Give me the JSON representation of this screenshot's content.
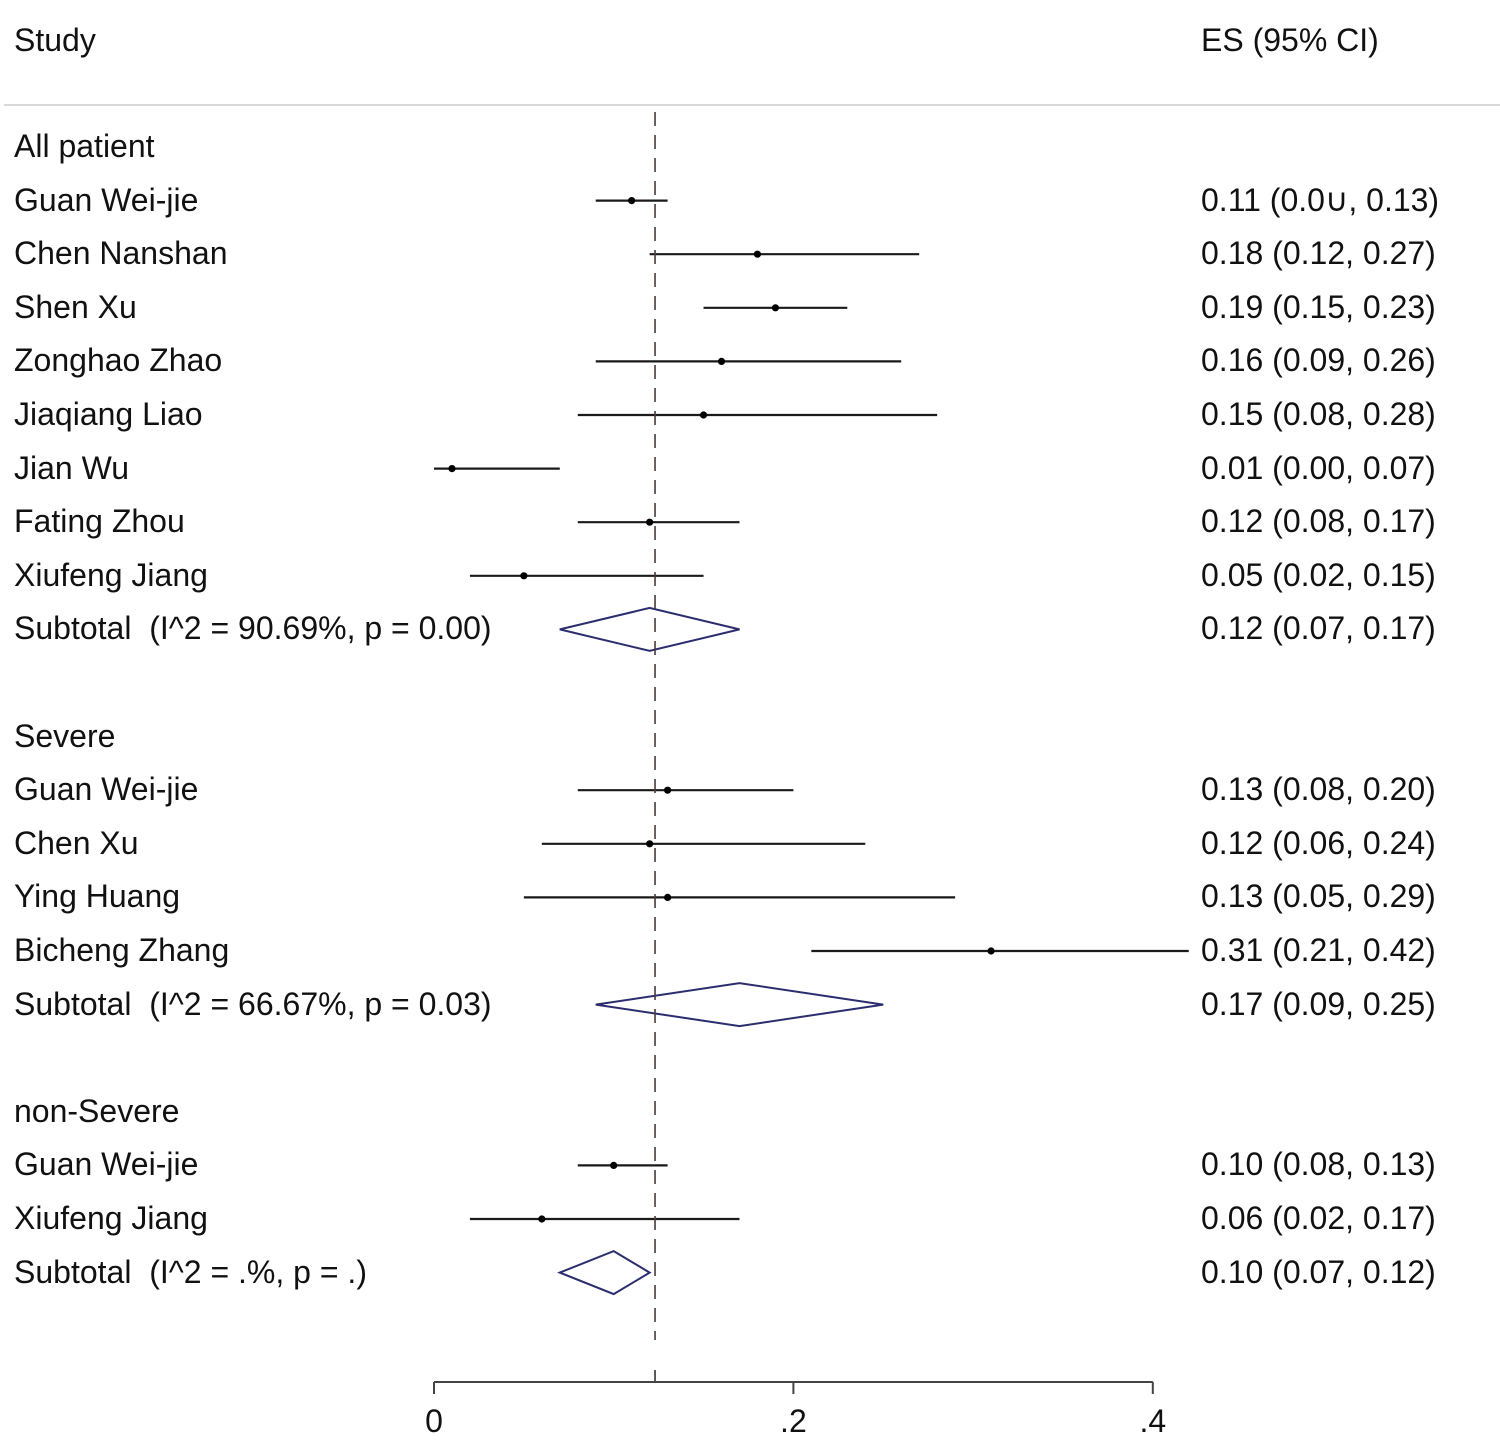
{
  "chart_data": {
    "type": "forest",
    "header": {
      "study_label": "Study",
      "es_label": "ES (95% CI)"
    },
    "xlim": [
      0,
      0.42
    ],
    "axis_ticks": [
      {
        "value": 0,
        "label": "0"
      },
      {
        "value": 0.2,
        "label": ".2"
      },
      {
        "value": 0.4,
        "label": ".4"
      }
    ],
    "reference_line": 0.123,
    "colors": {
      "marker": "#000000",
      "ci_line": "#1a1a1a",
      "diamond": "#2b2d6e",
      "ref_line": "#4a3a3a",
      "divider": "#d8d8d8"
    },
    "groups": [
      {
        "name": "All patient",
        "studies": [
          {
            "label": "Guan Wei-jie",
            "es": 0.11,
            "lo": 0.09,
            "hi": 0.13,
            "text": "0.11 (0.0∪, 0.13)"
          },
          {
            "label": "Chen Nanshan",
            "es": 0.18,
            "lo": 0.12,
            "hi": 0.27,
            "text": "0.18 (0.12, 0.27)"
          },
          {
            "label": "Shen Xu",
            "es": 0.19,
            "lo": 0.15,
            "hi": 0.23,
            "text": "0.19 (0.15, 0.23)"
          },
          {
            "label": "Zonghao Zhao",
            "es": 0.16,
            "lo": 0.09,
            "hi": 0.26,
            "text": "0.16 (0.09, 0.26)"
          },
          {
            "label": "Jiaqiang Liao",
            "es": 0.15,
            "lo": 0.08,
            "hi": 0.28,
            "text": "0.15 (0.08, 0.28)"
          },
          {
            "label": "Jian Wu",
            "es": 0.01,
            "lo": 0.0,
            "hi": 0.07,
            "text": "0.01 (0.00, 0.07)"
          },
          {
            "label": "Fating Zhou",
            "es": 0.12,
            "lo": 0.08,
            "hi": 0.17,
            "text": "0.12 (0.08, 0.17)"
          },
          {
            "label": "Xiufeng Jiang",
            "es": 0.05,
            "lo": 0.02,
            "hi": 0.15,
            "text": "0.05 (0.02, 0.15)"
          }
        ],
        "subtotal": {
          "label": "Subtotal  (I^2 = 90.69%, p = 0.00)",
          "es": 0.12,
          "lo": 0.07,
          "hi": 0.17,
          "text": "0.12 (0.07, 0.17)"
        }
      },
      {
        "name": "Severe",
        "studies": [
          {
            "label": "Guan Wei-jie",
            "es": 0.13,
            "lo": 0.08,
            "hi": 0.2,
            "text": "0.13 (0.08, 0.20)"
          },
          {
            "label": "Chen Xu",
            "es": 0.12,
            "lo": 0.06,
            "hi": 0.24,
            "text": "0.12 (0.06, 0.24)"
          },
          {
            "label": "Ying Huang",
            "es": 0.13,
            "lo": 0.05,
            "hi": 0.29,
            "text": "0.13 (0.05, 0.29)"
          },
          {
            "label": "Bicheng Zhang",
            "es": 0.31,
            "lo": 0.21,
            "hi": 0.42,
            "text": "0.31 (0.21, 0.42)"
          }
        ],
        "subtotal": {
          "label": "Subtotal  (I^2 = 66.67%, p = 0.03)",
          "es": 0.17,
          "lo": 0.09,
          "hi": 0.25,
          "text": "0.17 (0.09, 0.25)"
        }
      },
      {
        "name": "non-Severe",
        "studies": [
          {
            "label": "Guan Wei-jie",
            "es": 0.1,
            "lo": 0.08,
            "hi": 0.13,
            "text": "0.10 (0.08, 0.13)"
          },
          {
            "label": "Xiufeng Jiang",
            "es": 0.06,
            "lo": 0.02,
            "hi": 0.17,
            "text": "0.06 (0.02, 0.17)"
          }
        ],
        "subtotal": {
          "label": "Subtotal  (I^2 = .%, p = .)",
          "es": 0.1,
          "lo": 0.07,
          "hi": 0.12,
          "text": "0.10 (0.07, 0.12)"
        }
      }
    ]
  }
}
